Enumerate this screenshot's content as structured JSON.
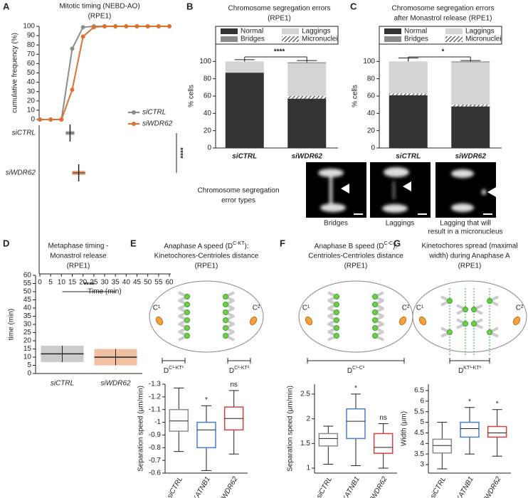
{
  "chart_data": [
    {
      "type": "line",
      "label": "A",
      "title": [
        "Mitotic timing (NEBD-AO)",
        "(RPE1)"
      ],
      "ylabel": "cumulative frequency (%)",
      "x": [
        0,
        5,
        10,
        15,
        20,
        25,
        30,
        35,
        40,
        45,
        50,
        55,
        60
      ],
      "xlim": [
        0,
        60
      ],
      "ylim": [
        0,
        100
      ],
      "yticks": [
        0,
        10,
        20,
        30,
        40,
        50,
        60,
        70,
        80,
        90,
        100
      ],
      "series": [
        {
          "name": "siCTRL",
          "color": "#8c8c8c",
          "values": [
            0,
            0,
            0,
            76,
            99,
            100,
            100,
            100,
            100,
            100,
            100,
            100,
            100
          ]
        },
        {
          "name": "siWDR62",
          "color": "#e07030",
          "values": [
            0,
            0,
            0,
            32,
            89,
            99,
            100,
            100,
            100,
            100,
            100,
            100,
            100
          ]
        }
      ]
    },
    {
      "type": "dotplot",
      "orientation": "horizontal",
      "categories": [
        "siCTRL",
        "siWDR62"
      ],
      "colors": [
        "#8c8c8c",
        "#e07030"
      ],
      "means": [
        14,
        18
      ],
      "sds": [
        2,
        3
      ],
      "xlim": [
        0,
        60
      ],
      "xticks": [
        0,
        5,
        10,
        15,
        20,
        25,
        30,
        35,
        40,
        45,
        50,
        55,
        60
      ],
      "xlabel": "Time (min)",
      "significance": "****"
    },
    {
      "type": "stacked_bar",
      "label": "B",
      "title": [
        "Chromosome segregation errors",
        "(RPE1)"
      ],
      "ylabel": "% cells",
      "categories": [
        "siCTRL",
        "siWDR62"
      ],
      "ylim": [
        0,
        120
      ],
      "yticks": [
        0,
        20,
        40,
        60,
        80,
        100
      ],
      "significance": "****",
      "series": [
        {
          "name": "Normal",
          "color": "#333333",
          "values": [
            87,
            57
          ],
          "errors": [
            2,
            6
          ]
        },
        {
          "name": "Micronuclei",
          "color": "hatch",
          "values": [
            0,
            3
          ]
        },
        {
          "name": "Laggings",
          "color": "#d4d4d4",
          "values": [
            13,
            38
          ],
          "errors": [
            2,
            3
          ]
        },
        {
          "name": "Bridges",
          "color": "#8a8a8a",
          "values": [
            0,
            1
          ]
        }
      ]
    },
    {
      "type": "stacked_bar",
      "label": "C",
      "title": [
        "Chromosome segregation errors",
        "after Monastrol release (RPE1)"
      ],
      "ylabel": "% cells",
      "categories": [
        "siCTRL",
        "siWDR62"
      ],
      "ylim": [
        0,
        120
      ],
      "yticks": [
        0,
        20,
        40,
        60,
        80,
        100
      ],
      "significance": "*",
      "series": [
        {
          "name": "Normal",
          "color": "#333333",
          "values": [
            61,
            48
          ],
          "errors": [
            3,
            2
          ]
        },
        {
          "name": "Micronuclei",
          "color": "hatch",
          "values": [
            2,
            2
          ]
        },
        {
          "name": "Laggings",
          "color": "#d4d4d4",
          "values": [
            37,
            49
          ],
          "errors": [
            4,
            2
          ]
        },
        {
          "name": "Bridges",
          "color": "#8a8a8a",
          "values": [
            0,
            1
          ]
        }
      ]
    },
    {
      "type": "dotplot",
      "orientation": "vertical",
      "label": "D",
      "title": [
        "Metaphase timing -",
        "Monastrol release",
        "(RPE1)"
      ],
      "ylabel": "time (min)",
      "categories": [
        "siCTRL",
        "siWDR62"
      ],
      "colors": [
        "#8c8c8c",
        "#e07030"
      ],
      "means": [
        12,
        10
      ],
      "sds": [
        5,
        5
      ],
      "ylim": [
        0,
        60
      ],
      "yticks": [
        0,
        5,
        10,
        15,
        20,
        25,
        30,
        35,
        40,
        45,
        50,
        55,
        60
      ],
      "significance": "****"
    },
    {
      "type": "box",
      "label": "E",
      "title": [
        [
          "Anaphase A speed (D",
          {
            "sup": "C-KT"
          },
          "):"
        ],
        "Kinetochores-Centrioles distance",
        "(RPE1)"
      ],
      "diagram": "a",
      "centriole_labels": [
        "C¹",
        "C²"
      ],
      "distance_labels": [
        [
          "D",
          {
            "sup": "C¹-KT¹"
          }
        ],
        [
          "D",
          {
            "sup": "C²-KT²"
          }
        ]
      ],
      "ylabel": "Separation speed (µm/min)",
      "ylim": [
        -0.6,
        -1.3
      ],
      "yticks": [
        -0.6,
        -0.7,
        -0.8,
        -0.9,
        -1,
        -1.1,
        -1.2,
        -1.3
      ],
      "categories": [
        "siCTRL",
        "siKATNB1",
        "siWDR62"
      ],
      "colors": [
        "#8c8c8c",
        "#4a7fc8",
        "#d84040"
      ],
      "stats": [
        [
          -0.77,
          -0.93,
          -1.01,
          -1.1,
          -1.27
        ],
        [
          -0.62,
          -0.8,
          -0.94,
          -1.0,
          -1.13
        ],
        [
          -0.75,
          -0.94,
          -1.03,
          -1.12,
          -1.25
        ]
      ],
      "annotations": [
        {
          "index": 1,
          "text": "*"
        },
        {
          "index": 2,
          "text": "ns"
        }
      ]
    },
    {
      "type": "box",
      "label": "F",
      "title": [
        [
          "Anaphase B speed (D",
          {
            "sup": "C-C"
          },
          "):"
        ],
        "Centrioles-Centrioles distance",
        "(RPE1)"
      ],
      "diagram": "b",
      "centriole_labels": [
        "C¹",
        "C²"
      ],
      "distance_labels": [
        [
          "D",
          {
            "sup": "C¹-C²"
          }
        ]
      ],
      "ylabel": "Separation speed (µm/min)",
      "ylim": [
        0.9,
        2.7
      ],
      "yticks": [
        1,
        1.5,
        2,
        2.5
      ],
      "categories": [
        "siCTRL",
        "siKATNB1",
        "siWDR62"
      ],
      "colors": [
        "#8c8c8c",
        "#4a7fc8",
        "#d84040"
      ],
      "stats": [
        [
          1.08,
          1.45,
          1.6,
          1.7,
          1.85
        ],
        [
          1.05,
          1.6,
          1.95,
          2.2,
          2.5
        ],
        [
          1.0,
          1.3,
          1.42,
          1.7,
          1.9
        ]
      ],
      "annotations": [
        {
          "index": 1,
          "text": "*"
        },
        {
          "index": 2,
          "text": "ns"
        }
      ]
    },
    {
      "type": "box",
      "label": "G",
      "title": [
        "Kinetochores spread (maximal",
        "width) during Anaphase A",
        "(RPE1)"
      ],
      "diagram": "g",
      "centriole_labels": [
        "C¹",
        "C²"
      ],
      "distance_labels": [
        [
          "D",
          {
            "sup": "KT¹-KT²"
          }
        ]
      ],
      "ylabel": "Width (µm)",
      "ylim": [
        2.6,
        6.8
      ],
      "yticks": [
        3,
        3.5,
        4,
        4.5,
        5,
        5.5,
        6,
        6.5
      ],
      "categories": [
        "siCTRL",
        "siKATNB1",
        "siWDR62"
      ],
      "colors": [
        "#8c8c8c",
        "#4a7fc8",
        "#d84040"
      ],
      "stats": [
        [
          2.8,
          3.55,
          3.9,
          4.2,
          5.0
        ],
        [
          3.5,
          4.3,
          4.7,
          5.0,
          5.7
        ],
        [
          3.4,
          4.3,
          4.5,
          4.8,
          5.6
        ]
      ],
      "annotations": [
        {
          "index": 1,
          "text": "*"
        },
        {
          "index": 2,
          "text": "*"
        }
      ]
    }
  ],
  "error_types": {
    "title": [
      "Chromosome segregation",
      "error types"
    ],
    "labels": [
      [
        "Bridges"
      ],
      [
        "Laggings"
      ],
      [
        "Lagging that will",
        "result in a micronucleus"
      ]
    ]
  }
}
